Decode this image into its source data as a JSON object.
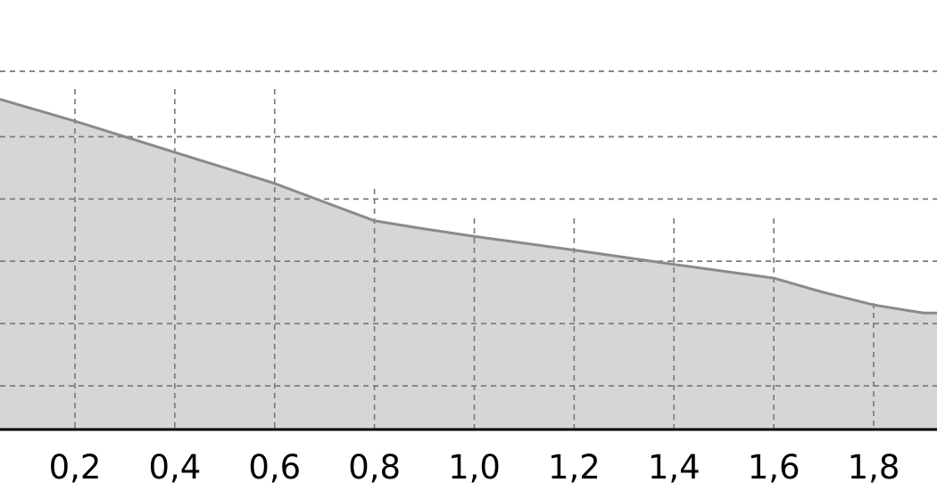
{
  "chart_data": {
    "type": "area",
    "title": "",
    "xlabel": "",
    "ylabel": "",
    "x_tick_labels": [
      "0,2",
      "0,4",
      "0,6",
      "0,8",
      "1,0",
      "1,2",
      "1,4",
      "1,6",
      "1,8"
    ],
    "x_ticks": [
      0.2,
      0.4,
      0.6,
      0.8,
      1.0,
      1.2,
      1.4,
      1.6,
      1.8
    ],
    "xlim": [
      0.05,
      1.9
    ],
    "ylim": [
      0,
      5.75
    ],
    "y_gridlines": [
      0.7,
      1.7,
      2.7,
      3.7,
      4.7,
      5.75
    ],
    "grid": true,
    "fill_color": "#d6d6d6",
    "line_color": "#8a8a8a",
    "series": [
      {
        "x": [
          0.05,
          0.2,
          0.4,
          0.6,
          0.75,
          0.8,
          0.9,
          1.0,
          1.2,
          1.4,
          1.6,
          1.7,
          1.8,
          1.9
        ],
        "y": [
          5.3,
          4.95,
          4.45,
          3.95,
          3.5,
          3.35,
          3.22,
          3.1,
          2.88,
          2.65,
          2.43,
          2.2,
          2.0,
          1.87
        ]
      }
    ]
  }
}
